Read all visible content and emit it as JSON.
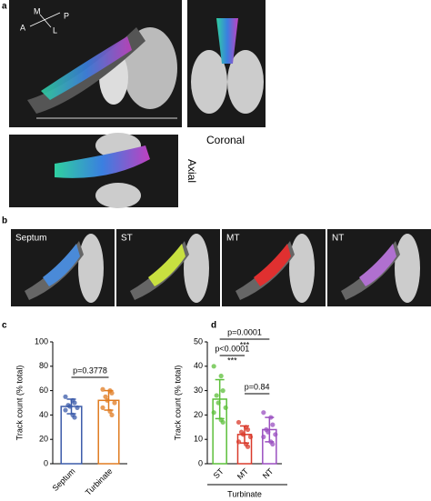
{
  "figure": {
    "panel_a": {
      "label": "a",
      "orientation": [
        "M",
        "P",
        "A",
        "L"
      ],
      "views": [
        "Coronal",
        "Axial"
      ]
    },
    "panel_b": {
      "label": "b",
      "images": [
        "Septum",
        "ST",
        "MT",
        "NT"
      ]
    }
  },
  "chart_data": [
    {
      "type": "bar",
      "panel_label": "c",
      "y_label": "Track count (% total)",
      "categories": [
        "Septum",
        "Turbinate"
      ],
      "colors": [
        "#3b5ba9",
        "#e07b20"
      ],
      "values": [
        47,
        52
      ],
      "errors": [
        6,
        8
      ],
      "points": [
        [
          55,
          52,
          50,
          48,
          47,
          46,
          44,
          40,
          38
        ],
        [
          61,
          60,
          58,
          55,
          52,
          50,
          46,
          43,
          40
        ]
      ],
      "ylim": [
        0,
        100
      ],
      "yticks": [
        0,
        20,
        40,
        60,
        80,
        100
      ],
      "annotations": [
        "p=0.3778"
      ]
    },
    {
      "type": "bar",
      "panel_label": "d",
      "y_label": "Track count (% total)",
      "categories": [
        "ST",
        "MT",
        "NT"
      ],
      "colors": [
        "#5cbf3a",
        "#d93a2b",
        "#9a4fc0"
      ],
      "values": [
        26.5,
        12,
        14
      ],
      "errors": [
        8,
        3.5,
        5
      ],
      "points": [
        [
          40,
          36,
          30,
          28,
          25,
          23,
          21,
          18,
          17
        ],
        [
          17,
          15,
          14,
          13,
          12,
          11,
          9,
          8,
          7
        ],
        [
          21,
          19,
          16,
          14,
          13,
          12,
          11,
          9,
          8
        ]
      ],
      "ylim": [
        0,
        50
      ],
      "yticks": [
        0,
        10,
        20,
        30,
        40,
        50
      ],
      "annotations": [
        "p=0.0001",
        "p<0.0001",
        "***",
        "***",
        "p=0.84"
      ],
      "group_label": "Turbinate"
    }
  ]
}
